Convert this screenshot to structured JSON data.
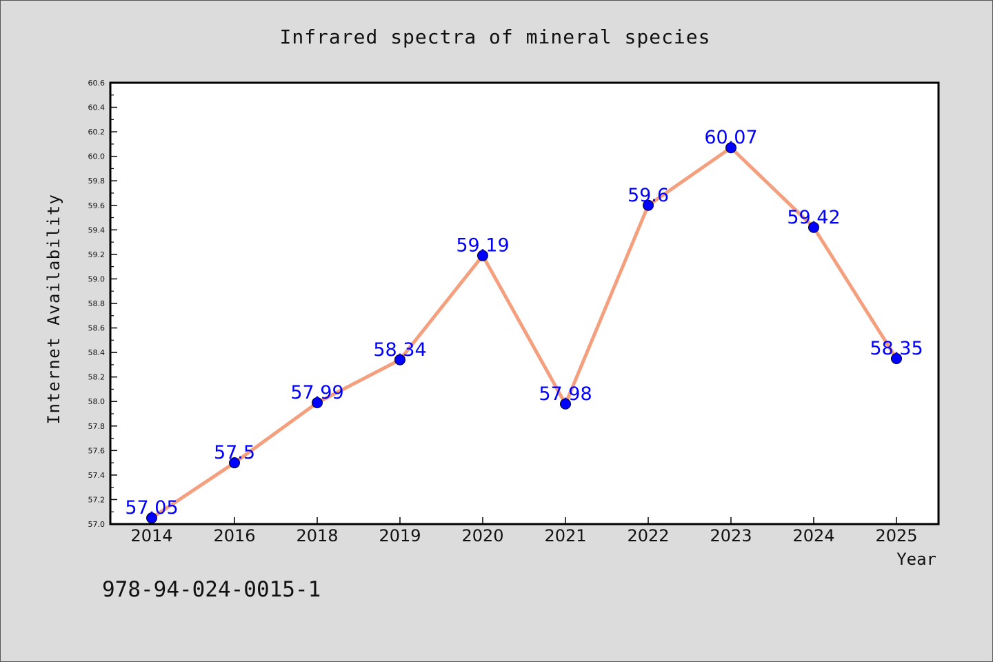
{
  "caption": "978-94-024-0015-1",
  "chart_data": {
    "type": "line",
    "title": "Infrared spectra of mineral species",
    "xlabel": "Year",
    "ylabel": "Internet Availability",
    "categories": [
      "2014",
      "2016",
      "2018",
      "2019",
      "2020",
      "2021",
      "2022",
      "2023",
      "2024",
      "2025"
    ],
    "values": [
      57.05,
      57.5,
      57.99,
      58.34,
      59.19,
      57.98,
      59.6,
      60.07,
      59.42,
      58.35
    ],
    "data_labels": [
      "57.05",
      "57.5",
      "57.99",
      "58.34",
      "59.19",
      "57.98",
      "59.6",
      "60.07",
      "59.42",
      "58.35"
    ],
    "ylim": [
      57.0,
      60.6
    ],
    "yticks": [
      "57.0",
      "57.2",
      "57.4",
      "57.6",
      "57.8",
      "58.0",
      "58.2",
      "58.4",
      "58.6",
      "58.8",
      "59.0",
      "59.2",
      "59.4",
      "59.6",
      "59.8",
      "60.0",
      "60.2",
      "60.4",
      "60.6"
    ],
    "grid": false,
    "line_color": "#f4a07f",
    "marker_color": "#0000ff",
    "label_color": "#0000ff"
  }
}
